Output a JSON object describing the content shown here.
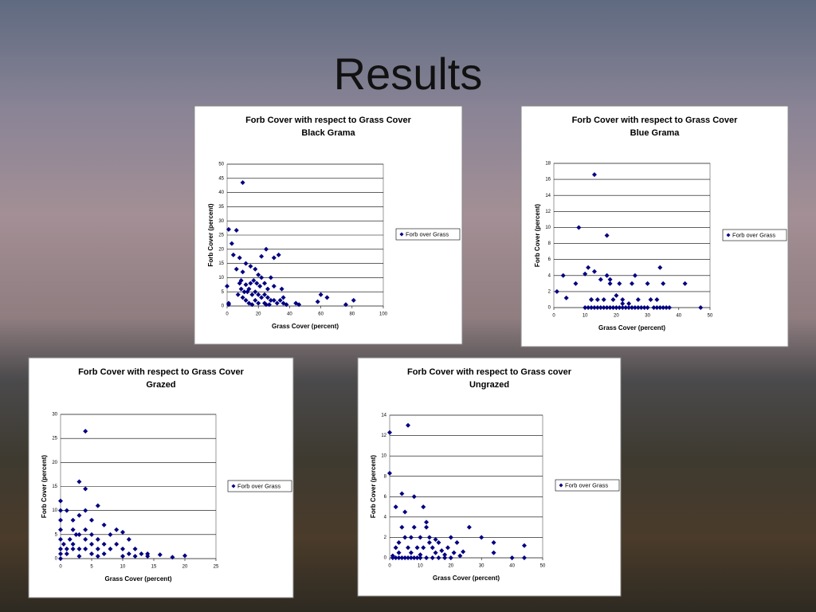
{
  "title": "Results",
  "chart_data": [
    {
      "type": "scatter",
      "title": "Forb Cover with respect to Grass Cover",
      "subtitle": "Black Grama",
      "x_label": "Grass Cover (percent)",
      "y_label": "Forb Cover (percent)",
      "xlim": [
        0,
        100
      ],
      "xticks": [
        0,
        20,
        40,
        60,
        80,
        100
      ],
      "ylim": [
        0,
        50
      ],
      "yticks": [
        0,
        5,
        10,
        15,
        20,
        25,
        30,
        35,
        40,
        45,
        50
      ],
      "grid": true,
      "legend": "right",
      "series": [
        {
          "name": "Forb over Grass",
          "color": "#000080",
          "x": [
            10,
            1,
            6,
            3,
            4,
            8,
            30,
            25,
            33,
            22,
            12,
            15,
            18,
            6,
            10,
            20,
            22,
            28,
            8,
            12,
            15,
            17,
            19,
            21,
            24,
            26,
            30,
            9,
            11,
            13,
            14,
            16,
            18,
            20,
            22,
            24,
            26,
            28,
            30,
            32,
            34,
            36,
            7,
            10,
            12,
            14,
            16,
            18,
            20,
            24,
            27,
            35,
            36,
            38,
            44,
            46,
            58,
            60,
            64,
            76,
            81,
            0,
            1,
            1,
            9,
            25
          ],
          "values": [
            43.5,
            27,
            26.7,
            22,
            18,
            17,
            17,
            20,
            18,
            17.5,
            15,
            14,
            13,
            13,
            12,
            11,
            10,
            10,
            8,
            7.5,
            8,
            9,
            8,
            7,
            8,
            6,
            7,
            6,
            5,
            5,
            6,
            4,
            5,
            4,
            3,
            4,
            3,
            2,
            2,
            1,
            2,
            1,
            4,
            3,
            2,
            1,
            0.5,
            2,
            1,
            1,
            0.5,
            6,
            3,
            0.5,
            1,
            0.5,
            1.5,
            4,
            3,
            0.5,
            2,
            7,
            1,
            0.5,
            9,
            0.5
          ]
        }
      ]
    },
    {
      "type": "scatter",
      "title": "Forb Cover with respect to Grass Cover",
      "subtitle": "Blue Grama",
      "x_label": "Grass Cover (percent)",
      "y_label": "Forb Cover (percent)",
      "xlim": [
        0,
        50
      ],
      "xticks": [
        0,
        10,
        20,
        30,
        40,
        50
      ],
      "ylim": [
        0,
        18
      ],
      "yticks": [
        0,
        2,
        4,
        6,
        8,
        10,
        12,
        14,
        16,
        18
      ],
      "grid": true,
      "legend": "right",
      "series": [
        {
          "name": "Forb over Grass",
          "color": "#000080",
          "x": [
            1,
            3,
            4,
            7,
            8,
            10,
            11,
            12,
            13,
            13,
            14,
            15,
            17,
            17,
            18,
            18,
            19,
            20,
            21,
            22,
            24,
            25,
            26,
            27,
            30,
            31,
            33,
            34,
            35,
            42,
            47,
            10,
            11,
            12,
            13,
            14,
            15,
            16,
            17,
            18,
            19,
            20,
            21,
            22,
            23,
            24,
            25,
            26,
            27,
            28,
            29,
            30,
            32,
            33,
            34,
            35,
            36,
            37,
            12,
            16,
            22
          ],
          "values": [
            2,
            4,
            1.2,
            3,
            10,
            4.2,
            5,
            1,
            16.6,
            4.5,
            1,
            3.5,
            9,
            4,
            3.5,
            3,
            1,
            1.5,
            3,
            1,
            0.5,
            3,
            4,
            1,
            3,
            1,
            1,
            5,
            3,
            3,
            0,
            0,
            0,
            0,
            0,
            0,
            0,
            0,
            0,
            0,
            0,
            0,
            0,
            0,
            0,
            0,
            0,
            0,
            0,
            0,
            0,
            0,
            0,
            0,
            0,
            0,
            0,
            0,
            1,
            1,
            0.5
          ]
        }
      ]
    },
    {
      "type": "scatter",
      "title": "Forb Cover with respect to Grass Cover",
      "subtitle": "Grazed",
      "x_label": "Grass Cover (percent)",
      "y_label": "Forb Cover (percent)",
      "xlim": [
        0,
        25
      ],
      "xticks": [
        0,
        5,
        10,
        15,
        20,
        25
      ],
      "ylim": [
        0,
        30
      ],
      "yticks": [
        0,
        5,
        10,
        15,
        20,
        25,
        30
      ],
      "grid": true,
      "legend": "right",
      "series": [
        {
          "name": "Forb over Grass",
          "color": "#000080",
          "x": [
            0,
            0,
            0,
            0,
            0,
            0,
            0,
            0,
            1,
            1,
            1,
            2,
            2,
            2,
            2,
            3,
            3,
            3,
            3,
            3,
            4,
            4,
            4,
            4,
            4,
            4,
            5,
            5,
            5,
            5,
            6,
            6,
            6,
            6,
            7,
            7,
            7,
            8,
            8,
            9,
            9,
            10,
            10,
            10,
            11,
            11,
            12,
            12,
            13,
            14,
            14,
            16,
            18,
            20,
            0.5,
            1.5,
            2.5
          ],
          "values": [
            12,
            10,
            8,
            6,
            4,
            2,
            1,
            0,
            10,
            2,
            1,
            8,
            6,
            3,
            2,
            16,
            9,
            5,
            2,
            0.5,
            26.5,
            14.5,
            10,
            6,
            4,
            2,
            8,
            5,
            3,
            1,
            11,
            4,
            2,
            0.5,
            7,
            3,
            1,
            5,
            2,
            6,
            3,
            5.5,
            2,
            0.5,
            4,
            1,
            2,
            0.5,
            1,
            1,
            0.5,
            0.8,
            0.3,
            0.6,
            3,
            4,
            5
          ]
        }
      ]
    },
    {
      "type": "scatter",
      "title": "Forb Cover with respect to Grass cover",
      "subtitle": "Ungrazed",
      "x_label": "Grass Cover (percent)",
      "y_label": "Forb Cover (percent)",
      "xlim": [
        0,
        50
      ],
      "xticks": [
        0,
        10,
        20,
        30,
        40,
        50
      ],
      "ylim": [
        0,
        14
      ],
      "yticks": [
        0,
        2,
        4,
        6,
        8,
        10,
        12,
        14
      ],
      "grid": true,
      "legend": "right",
      "series": [
        {
          "name": "Forb over Grass",
          "color": "#000080",
          "x": [
            0,
            0,
            6,
            2,
            4,
            8,
            5,
            4,
            8,
            11,
            12,
            12,
            10,
            13,
            16,
            20,
            22,
            26,
            30,
            34,
            34,
            40,
            44,
            44,
            2,
            3,
            5,
            6,
            7,
            9,
            10,
            11,
            14,
            15,
            17,
            18,
            19,
            21,
            23,
            24,
            1,
            2,
            3,
            4,
            5,
            6,
            7,
            8,
            9,
            10,
            12,
            14,
            16,
            18,
            20,
            1,
            3,
            7,
            13,
            15
          ],
          "values": [
            12.3,
            8.3,
            13,
            5,
            6.3,
            6,
            4.5,
            3,
            3,
            5,
            3.5,
            3,
            2,
            2,
            1.5,
            2,
            1.5,
            3,
            2,
            1.5,
            0.5,
            0,
            1.2,
            0,
            1,
            0.5,
            2,
            1,
            0.5,
            1,
            0.3,
            1,
            1,
            0.5,
            0.7,
            0.3,
            1,
            0.5,
            0.2,
            0.6,
            0,
            0,
            0,
            0,
            0,
            0,
            0,
            0,
            0,
            0,
            0,
            0,
            0,
            0,
            0,
            0.2,
            1.5,
            2,
            1.5,
            1.8
          ]
        }
      ]
    }
  ]
}
